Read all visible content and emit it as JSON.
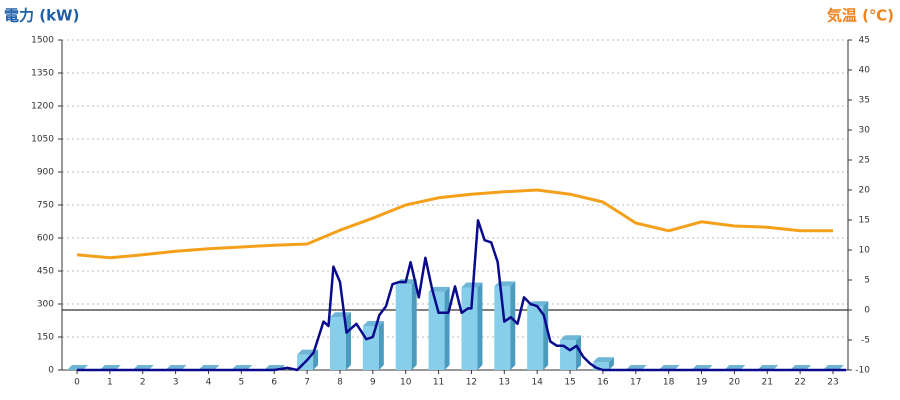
{
  "chart_data": {
    "type": "combo",
    "ylabel": "電力 (kW)",
    "y2label": "気温 (℃)",
    "categories": [
      "0",
      "1",
      "2",
      "3",
      "4",
      "5",
      "6",
      "7",
      "8",
      "9",
      "10",
      "11",
      "12",
      "13",
      "14",
      "15",
      "16",
      "17",
      "18",
      "19",
      "20",
      "21",
      "22",
      "23"
    ],
    "ylim": [
      0,
      1500
    ],
    "yticks": [
      0,
      150,
      300,
      450,
      600,
      750,
      900,
      1050,
      1200,
      1350,
      1500
    ],
    "y2lim": [
      -10,
      45
    ],
    "y2ticks": [
      -10,
      -5,
      0,
      5,
      10,
      15,
      20,
      25,
      30,
      35,
      40,
      45
    ],
    "grid": true,
    "series": [
      {
        "type": "bar",
        "color": "#87ceeb",
        "values": [
          0,
          0,
          0,
          0,
          0,
          0,
          0,
          70,
          240,
          200,
          390,
          355,
          375,
          380,
          290,
          135,
          35,
          0,
          0,
          0,
          0,
          0,
          0,
          0
        ]
      },
      {
        "type": "line",
        "color": "#0a0a8c",
        "x": [
          0,
          6,
          6.4,
          6.7,
          7,
          7.2,
          7.5,
          7.65,
          7.8,
          8,
          8.2,
          8.5,
          8.8,
          9,
          9.2,
          9.4,
          9.6,
          9.8,
          10,
          10.15,
          10.4,
          10.6,
          10.8,
          11,
          11.3,
          11.5,
          11.7,
          11.9,
          12,
          12.2,
          12.4,
          12.6,
          12.8,
          13,
          13.2,
          13.4,
          13.6,
          13.8,
          14,
          14.2,
          14.4,
          14.6,
          14.8,
          15,
          15.2,
          15.4,
          15.6,
          15.8,
          16,
          23.4
        ],
        "values": [
          0,
          0,
          10,
          0,
          45,
          80,
          220,
          200,
          470,
          400,
          170,
          210,
          140,
          150,
          250,
          290,
          390,
          400,
          400,
          490,
          330,
          510,
          370,
          260,
          260,
          380,
          260,
          280,
          280,
          680,
          590,
          580,
          490,
          220,
          240,
          210,
          330,
          300,
          290,
          250,
          130,
          110,
          110,
          90,
          110,
          60,
          30,
          10,
          0,
          0
        ]
      },
      {
        "type": "line",
        "axis": "y2",
        "color": "#f5a01a",
        "values": [
          9.2,
          8.7,
          9.2,
          9.8,
          10.2,
          10.5,
          10.8,
          11,
          13.3,
          15.3,
          17.5,
          18.7,
          19.3,
          19.7,
          20,
          19.3,
          18,
          14.5,
          13.2,
          14.7,
          14,
          13.8,
          13.2,
          13.2
        ]
      }
    ]
  }
}
